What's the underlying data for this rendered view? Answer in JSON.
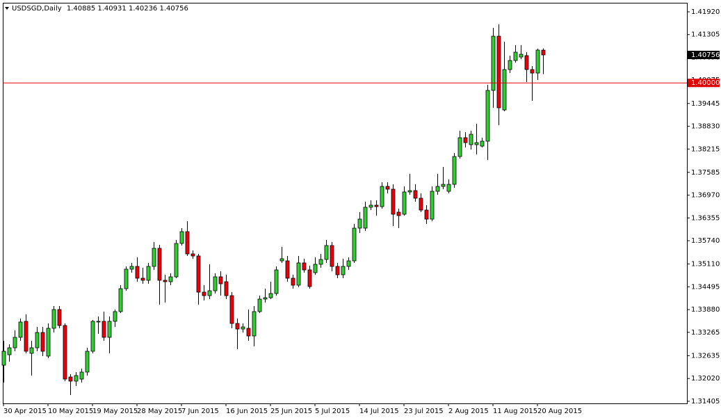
{
  "chart_data": {
    "type": "candlestick",
    "symbol": "USDSGD,Daily",
    "up_color": "#32cd32",
    "down_color": "#e8000b",
    "ylim": [
      1.31347,
      1.42164
    ],
    "yticks": [
      {
        "value": 1.4192,
        "label": "1.41920"
      },
      {
        "value": 1.41305,
        "label": "1.41305"
      },
      {
        "value": 1.4069,
        "label": "1.40690"
      },
      {
        "value": 1.40075,
        "label": "1.40075"
      },
      {
        "value": 1.39445,
        "label": "1.39445"
      },
      {
        "value": 1.3883,
        "label": "1.38830"
      },
      {
        "value": 1.38215,
        "label": "1.38215"
      },
      {
        "value": 1.37585,
        "label": "1.37585"
      },
      {
        "value": 1.3697,
        "label": "1.36970"
      },
      {
        "value": 1.36355,
        "label": "1.36355"
      },
      {
        "value": 1.3574,
        "label": "1.35740"
      },
      {
        "value": 1.3511,
        "label": "1.35110"
      },
      {
        "value": 1.34495,
        "label": "1.34495"
      },
      {
        "value": 1.3388,
        "label": "1.33880"
      },
      {
        "value": 1.33265,
        "label": "1.33265"
      },
      {
        "value": 1.32635,
        "label": "1.32635"
      },
      {
        "value": 1.3202,
        "label": "1.32020"
      },
      {
        "value": 1.31405,
        "label": "1.31405"
      }
    ],
    "hline": {
      "value": 1.4,
      "label": "1.40000",
      "color": "#e00000"
    },
    "categories": [
      "30 Apr 2015",
      null,
      null,
      null,
      null,
      null,
      null,
      null,
      "10 May 2015",
      null,
      null,
      null,
      null,
      null,
      null,
      null,
      "19 May 2015",
      null,
      null,
      null,
      null,
      null,
      null,
      null,
      "28 May 2015",
      null,
      null,
      null,
      null,
      null,
      null,
      null,
      "7 Jun 2015",
      null,
      null,
      null,
      null,
      null,
      null,
      null,
      "16 Jun 2015",
      null,
      null,
      null,
      null,
      null,
      null,
      null,
      "25 Jun 2015",
      null,
      null,
      null,
      null,
      null,
      null,
      null,
      "5 Jul 2015",
      null,
      null,
      null,
      null,
      null,
      null,
      null,
      "14 Jul 2015",
      null,
      null,
      null,
      null,
      null,
      null,
      null,
      "23 Jul 2015",
      null,
      null,
      null,
      null,
      null,
      null,
      null,
      "2 Aug 2015",
      null,
      null,
      null,
      null,
      null,
      null,
      null,
      "11 Aug 2015",
      null,
      null,
      null,
      null,
      null,
      null,
      null,
      "20 Aug 2015",
      null
    ],
    "open": [
      1.32379,
      1.32661,
      1.32849,
      1.33131,
      1.33563,
      1.32699,
      1.32849,
      1.33262,
      1.32624,
      1.33375,
      1.33882,
      1.3345,
      1.3206,
      1.31948,
      1.32004,
      1.32192,
      1.32755,
      1.33544,
      1.33563,
      1.33131,
      1.33563,
      1.33826,
      1.34445,
      1.34971,
      1.35046,
      1.34727,
      1.34671,
      1.35046,
      1.35535,
      1.34671,
      1.34633,
      1.34765,
      1.35666,
      1.35985,
      1.35384,
      1.35328,
      1.34351,
      1.34257,
      1.34389,
      1.34765,
      1.34633,
      1.34257,
      1.33506,
      1.33356,
      1.33375,
      1.33168,
      1.33826,
      1.34164,
      1.34201,
      1.34314,
      1.35196,
      1.35196,
      1.34727,
      1.34539,
      1.3514,
      1.34952,
      1.34877,
      1.35103,
      1.35234,
      1.3561,
      1.35046,
      1.34821,
      1.35046,
      1.35196,
      1.36079,
      1.36079,
      1.36643,
      1.36699,
      1.36661,
      1.37206,
      1.37131,
      1.36511,
      1.36455,
      1.37056,
      1.37093,
      1.36887,
      1.36567,
      1.36323,
      1.37074,
      1.37206,
      1.37074,
      1.37262,
      1.38013,
      1.38521,
      1.38333,
      1.38333,
      1.38295,
      1.38427,
      1.39798,
      1.41262,
      1.39272,
      1.40361,
      1.40605,
      1.40699,
      1.40737,
      1.40361,
      1.40267,
      1.40885
    ],
    "high": [
      1.33037,
      1.32943,
      1.33318,
      1.33638,
      1.3375,
      1.33037,
      1.33412,
      1.33412,
      1.33506,
      1.33976,
      1.33976,
      1.33506,
      1.32135,
      1.32192,
      1.32286,
      1.32849,
      1.336,
      1.33694,
      1.33826,
      1.33694,
      1.33882,
      1.34539,
      1.35046,
      1.3514,
      1.3529,
      1.35009,
      1.3514,
      1.35704,
      1.35628,
      1.34821,
      1.34858,
      1.3576,
      1.36079,
      1.36267,
      1.35478,
      1.35384,
      1.34539,
      1.35103,
      1.34858,
      1.34915,
      1.34821,
      1.34351,
      1.33638,
      1.33506,
      1.33882,
      1.33976,
      1.34257,
      1.34445,
      1.34633,
      1.35046,
      1.35572,
      1.35328,
      1.34821,
      1.35328,
      1.35253,
      1.35065,
      1.3529,
      1.35384,
      1.3576,
      1.35704,
      1.3514,
      1.35253,
      1.3529,
      1.36192,
      1.36511,
      1.36793,
      1.3683,
      1.3683,
      1.37319,
      1.37319,
      1.37262,
      1.36605,
      1.37206,
      1.37544,
      1.37262,
      1.37018,
      1.36699,
      1.37206,
      1.37544,
      1.37732,
      1.37394,
      1.38107,
      1.38708,
      1.38671,
      1.38708,
      1.38896,
      1.38521,
      1.39948,
      1.41488,
      1.41582,
      1.41112,
      1.40737,
      1.41018,
      1.41018,
      1.4083,
      1.40455,
      1.40924,
      1.40931
    ],
    "low": [
      1.3191,
      1.32473,
      1.32755,
      1.33037,
      1.32699,
      1.32098,
      1.32755,
      1.32624,
      1.32567,
      1.33262,
      1.33375,
      1.31948,
      1.31572,
      1.31816,
      1.3191,
      1.32098,
      1.32699,
      1.33225,
      1.33037,
      1.32699,
      1.33412,
      1.33788,
      1.34389,
      1.34877,
      1.34633,
      1.34577,
      1.34577,
      1.34952,
      1.34013,
      1.3407,
      1.34539,
      1.34727,
      1.3561,
      1.35328,
      1.35253,
      1.34013,
      1.34126,
      1.34164,
      1.34314,
      1.34257,
      1.34164,
      1.33375,
      1.32811,
      1.33262,
      1.33037,
      1.32887,
      1.33788,
      1.3407,
      1.34164,
      1.34257,
      1.3514,
      1.34633,
      1.34445,
      1.34483,
      1.34877,
      1.34445,
      1.34821,
      1.35009,
      1.3514,
      1.34915,
      1.34727,
      1.34727,
      1.34952,
      1.3514,
      1.35948,
      1.36004,
      1.36567,
      1.36417,
      1.36605,
      1.37018,
      1.36135,
      1.36079,
      1.36417,
      1.36981,
      1.36793,
      1.36511,
      1.36192,
      1.36267,
      1.36981,
      1.37131,
      1.37018,
      1.37168,
      1.37957,
      1.38258,
      1.38201,
      1.3807,
      1.38258,
      1.3792,
      1.39328,
      1.38859,
      1.39234,
      1.40267,
      1.40549,
      1.40643,
      1.40023,
      1.39516,
      1.40079,
      1.40236
    ],
    "close": [
      1.32755,
      1.32849,
      1.33131,
      1.33544,
      1.32755,
      1.32849,
      1.33262,
      1.32755,
      1.33375,
      1.33882,
      1.3345,
      1.32004,
      1.31948,
      1.32098,
      1.32192,
      1.32755,
      1.33563,
      1.33563,
      1.33131,
      1.33563,
      1.33826,
      1.34445,
      1.34971,
      1.35046,
      1.34727,
      1.34671,
      1.35046,
      1.35535,
      1.34671,
      1.34633,
      1.34765,
      1.35666,
      1.35985,
      1.35384,
      1.35328,
      1.34351,
      1.34257,
      1.34389,
      1.34765,
      1.34577,
      1.34257,
      1.33506,
      1.33356,
      1.33412,
      1.33168,
      1.33826,
      1.34164,
      1.34201,
      1.34314,
      1.34952,
      1.35253,
      1.34727,
      1.34539,
      1.3514,
      1.34952,
      1.34502,
      1.35103,
      1.35234,
      1.3561,
      1.35046,
      1.34821,
      1.35046,
      1.35196,
      1.36079,
      1.36323,
      1.36643,
      1.36699,
      1.36661,
      1.37206,
      1.37131,
      1.36455,
      1.36417,
      1.37056,
      1.37093,
      1.36887,
      1.36567,
      1.36323,
      1.37074,
      1.37206,
      1.37262,
      1.37262,
      1.38013,
      1.38521,
      1.38389,
      1.38614,
      1.38389,
      1.38427,
      1.39798,
      1.41262,
      1.39328,
      1.40361,
      1.40605,
      1.4083,
      1.40774,
      1.40361,
      1.40267,
      1.40887,
      1.40756
    ]
  }
}
